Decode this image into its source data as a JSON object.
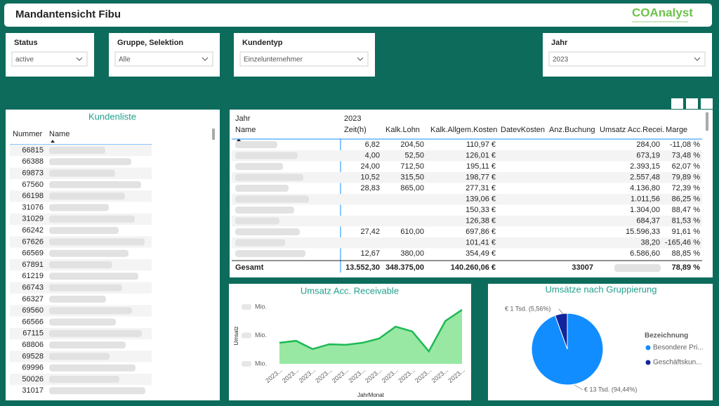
{
  "header": {
    "title": "Mandantensicht Fibu",
    "logo": "COAnalyst"
  },
  "filters": [
    {
      "label": "Status",
      "value": "active"
    },
    {
      "label": "Gruppe, Selektion",
      "value": "Alle"
    },
    {
      "label": "Kundentyp",
      "value": "Einzelunternehmer"
    },
    {
      "label": "Jahr",
      "value": "2023"
    }
  ],
  "customer_list": {
    "title": "Kundenliste",
    "columns": [
      "Nummer",
      "Name"
    ],
    "numbers": [
      "66815",
      "66388",
      "69873",
      "67560",
      "66198",
      "31076",
      "31029",
      "66242",
      "67626",
      "66569",
      "67891",
      "61219",
      "66743",
      "66327",
      "69560",
      "66566",
      "67115",
      "68806",
      "69528",
      "69996",
      "50026",
      "31017"
    ]
  },
  "matrix": {
    "col_header": "Jahr",
    "year": "2023",
    "row_header": "Name",
    "columns": [
      "Zeit(h)",
      "Kalk.Lohn",
      "Kalk.Allgem.Kosten",
      "DatevKosten",
      "Anz.Buchung",
      "Umsatz Acc.Recei.",
      "Marge"
    ],
    "rows": [
      [
        "6,82",
        "204,50",
        "110,97 €",
        null,
        null,
        "284,00",
        "-11,08 %"
      ],
      [
        "4,00",
        "52,50",
        "126,01 €",
        null,
        null,
        "673,19",
        "73,48 %"
      ],
      [
        "24,00",
        "712,50",
        "195,11 €",
        null,
        null,
        "2.393,15",
        "62,07 %"
      ],
      [
        "10,52",
        "315,50",
        "198,77 €",
        null,
        null,
        "2.557,48",
        "79,89 %"
      ],
      [
        "28,83",
        "865,00",
        "277,31 €",
        null,
        null,
        "4.136,80",
        "72,39 %"
      ],
      [
        null,
        null,
        "139,06 €",
        null,
        null,
        "1.011,56",
        "86,25 %"
      ],
      [
        null,
        null,
        "150,33 €",
        null,
        null,
        "1.304,00",
        "88,47 %"
      ],
      [
        null,
        null,
        "126,38 €",
        null,
        null,
        "684,37",
        "81,53 %"
      ],
      [
        "27,42",
        "610,00",
        "697,86 €",
        null,
        null,
        "15.596,33",
        "91,61 %"
      ],
      [
        null,
        null,
        "101,41 €",
        null,
        null,
        "38,20",
        "-165,46 %"
      ],
      [
        "12,67",
        "380,00",
        "354,49 €",
        null,
        null,
        "6.586,60",
        "88,85 %"
      ]
    ],
    "total": {
      "label": "Gesamt",
      "values": [
        "13.552,30",
        "348.375,00",
        "140.260,06 €",
        null,
        "33007",
        null,
        "78,89 %"
      ]
    }
  },
  "chart_data": [
    {
      "type": "area",
      "title": "Umsatz Acc. Receivable",
      "x_label": "JahrMonat",
      "y_label": "Umsatz",
      "categories": [
        "2023...",
        "2023...",
        "2023...",
        "2023...",
        "2023...",
        "2023...",
        "2023...",
        "2023...",
        "2023...",
        "2023...",
        "2023...",
        "2023..."
      ],
      "values": [
        0.74,
        0.81,
        0.52,
        0.69,
        0.67,
        0.74,
        0.89,
        1.31,
        1.14,
        0.44,
        1.51,
        1.9
      ],
      "color": "#1db954",
      "fill": "#98e8a4",
      "ylim": [
        0,
        2.1
      ],
      "yticks": [
        {
          "value": 0,
          "label": "Mio."
        },
        {
          "value": 1,
          "label": "Mio."
        },
        {
          "value": 2,
          "label": "Mio."
        }
      ]
    },
    {
      "type": "pie",
      "title": "Umsätze nach Gruppierung",
      "legend_title": "Bezeichnung",
      "categories": [
        "Besondere Pri...",
        "Geschäftskun..."
      ],
      "values": [
        94.44,
        5.56
      ],
      "value_labels": [
        "€ 13 Tsd. (94,44%)",
        "€ 1 Tsd. (5,56%)"
      ],
      "colors": [
        "#118dff",
        "#12239e"
      ]
    }
  ]
}
